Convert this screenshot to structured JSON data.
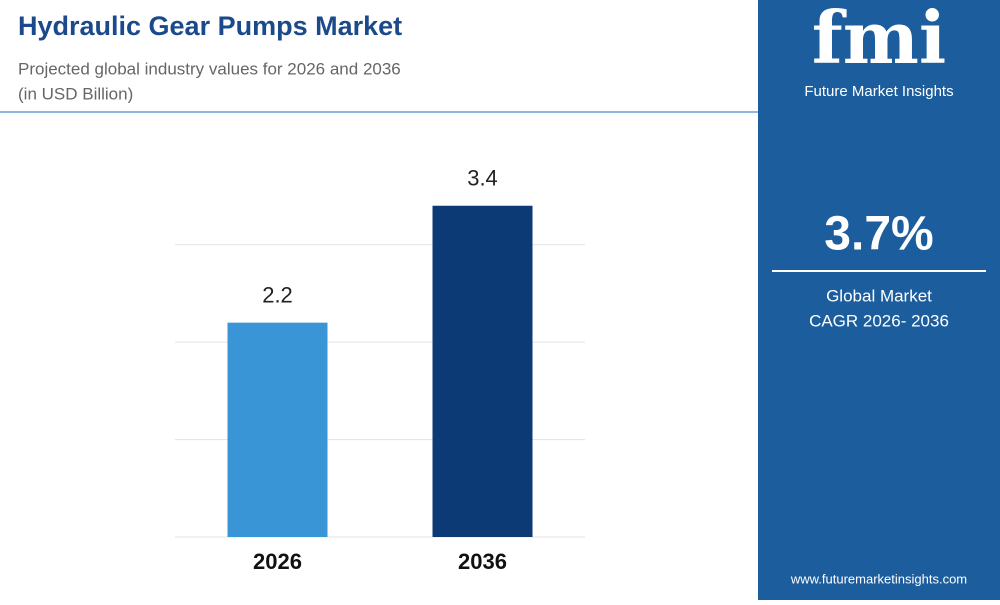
{
  "chart_data": {
    "type": "bar",
    "title": "Hydraulic Gear Pumps Market",
    "subtitle": "Projected global industry values for 2026 and 2036",
    "unit_note": "(in USD Billion)",
    "categories": [
      "2026",
      "2036"
    ],
    "values": [
      2.2,
      3.4
    ],
    "colors": [
      "#3a95d6",
      "#0c3a74"
    ],
    "ylim": [
      0,
      3.5
    ],
    "yticks": [
      0,
      1,
      2,
      3
    ],
    "grid": true
  },
  "sidebar": {
    "logo": "fmi",
    "brand": "Future Market Insights",
    "cagr": "3.7%",
    "cagr_label_1": "Global Market",
    "cagr_label_2": "CAGR 2026- 2036",
    "website": "www.futuremarketinsights.com"
  }
}
